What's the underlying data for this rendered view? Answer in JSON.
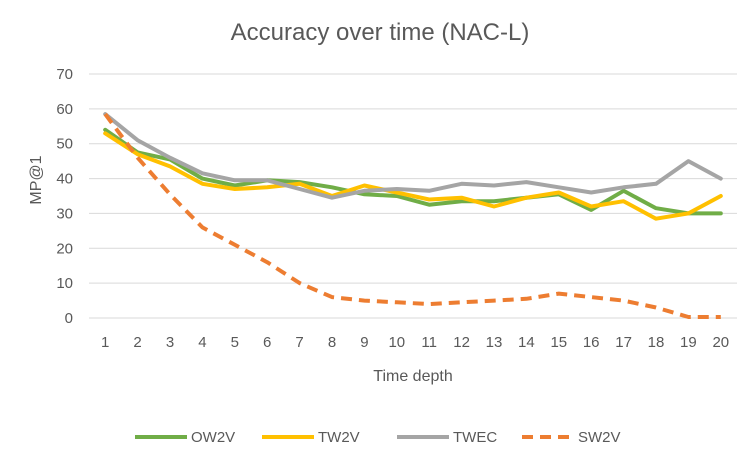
{
  "chart_data": {
    "type": "line",
    "title": "Accuracy over time (NAC-L)",
    "xlabel": "Time depth",
    "ylabel": "MP@1",
    "ylim": [
      0,
      70
    ],
    "yticks": [
      0,
      10,
      20,
      30,
      40,
      50,
      60,
      70
    ],
    "grid": "horizontal",
    "legend_position": "bottom",
    "categories": [
      "1",
      "2",
      "3",
      "4",
      "5",
      "6",
      "7",
      "8",
      "9",
      "10",
      "11",
      "12",
      "13",
      "14",
      "15",
      "16",
      "17",
      "18",
      "19",
      "20"
    ],
    "series": [
      {
        "name": "OW2V",
        "color": "#70AD47",
        "dashed": false,
        "values": [
          54,
          47.5,
          45.5,
          40,
          38,
          39.5,
          39,
          37.5,
          35.5,
          35,
          32.5,
          33.5,
          33.5,
          34.5,
          35.5,
          31,
          36.5,
          31.5,
          30,
          30
        ]
      },
      {
        "name": "TW2V",
        "color": "#FFC000",
        "dashed": false,
        "values": [
          53,
          47,
          43.5,
          38.5,
          37,
          37.5,
          38.5,
          35,
          38,
          36,
          34,
          34.5,
          32,
          34.5,
          36,
          32,
          33.5,
          28.5,
          30,
          35
        ]
      },
      {
        "name": "TWEC",
        "color": "#A5A5A5",
        "dashed": false,
        "values": [
          58.5,
          51,
          46,
          41.5,
          39.5,
          39.5,
          37,
          34.5,
          36.5,
          37,
          36.5,
          38.5,
          38,
          39,
          37.5,
          36,
          37.5,
          38.5,
          45,
          40
        ]
      },
      {
        "name": "SW2V",
        "color": "#ED7D31",
        "dashed": true,
        "values": [
          58.5,
          46,
          35.5,
          26,
          21,
          16,
          10,
          6,
          5,
          4.5,
          4,
          4.5,
          5,
          5.5,
          7,
          6,
          5,
          3,
          0.3,
          0.3
        ]
      }
    ]
  }
}
